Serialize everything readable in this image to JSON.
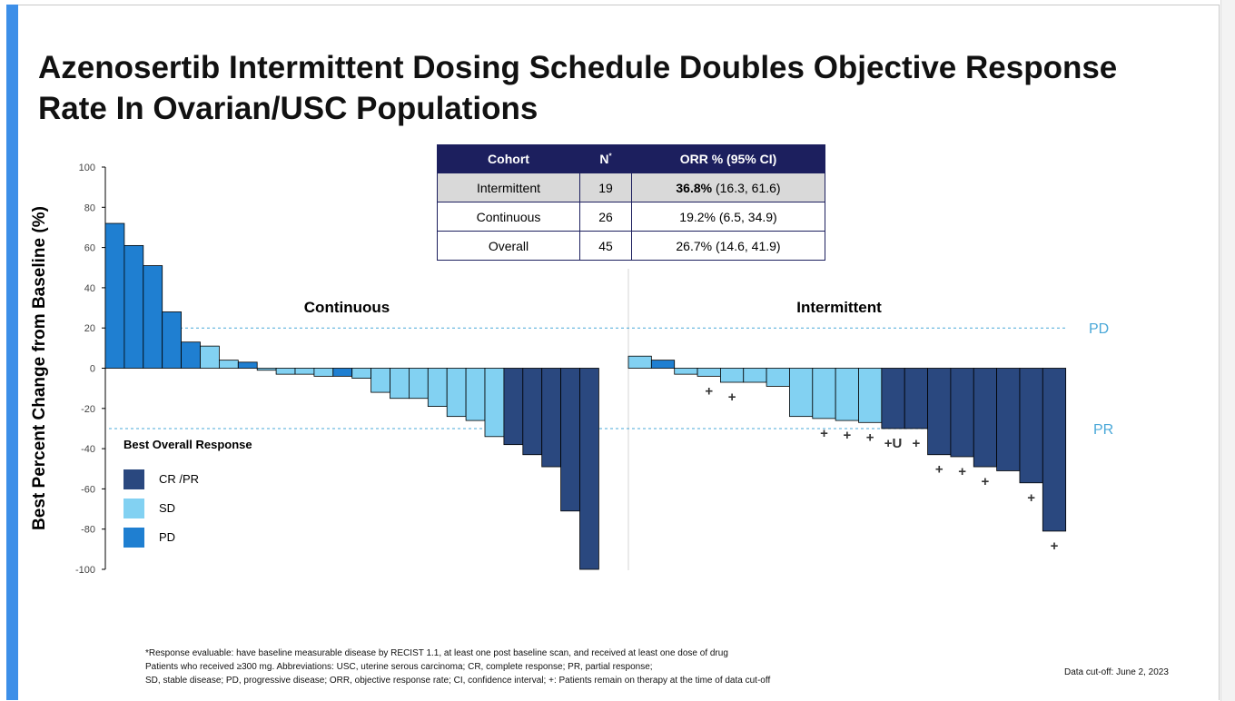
{
  "slide": {
    "title_line1": "Azenosertib Intermittent Dosing Schedule Doubles Objective Response",
    "title_line2": "Rate In Ovarian/USC Populations"
  },
  "table": {
    "headers": [
      "Cohort",
      "N*",
      "ORR % (95% CI)"
    ],
    "rows": [
      {
        "cohort": "Intermittent",
        "n": "19",
        "orr": "36.8%",
        "ci": "(16.3, 61.6)"
      },
      {
        "cohort": "Continuous",
        "n": "26",
        "orr": "19.2%",
        "ci": "(6.5, 34.9)"
      },
      {
        "cohort": "Overall",
        "n": "45",
        "orr": "26.7%",
        "ci": "(14.6, 41.9)"
      }
    ]
  },
  "chart_data": {
    "type": "bar",
    "ylabel": "Best Percent Change from Baseline (%)",
    "ylim": [
      -100,
      100
    ],
    "yticks": [
      "100",
      "80",
      "60",
      "40",
      "20",
      "0",
      "-20",
      "-40",
      "-60",
      "-80",
      "-100"
    ],
    "threshold_lines": [
      {
        "label": "PD",
        "value": 20
      },
      {
        "label": "PR",
        "value": -30
      }
    ],
    "legend": {
      "title": "Best Overall Response",
      "items": [
        {
          "key": "CR",
          "label": "CR /PR",
          "color": "#2a487f"
        },
        {
          "key": "SD",
          "label": "SD",
          "color": "#82d1f2"
        },
        {
          "key": "PD",
          "label": "PD",
          "color": "#1f7fd1"
        }
      ]
    },
    "series": [
      {
        "name": "Continuous",
        "values": [
          72,
          61,
          51,
          28,
          13,
          11,
          4,
          3,
          -1,
          -3,
          -3,
          -4,
          -4,
          -5,
          -12,
          -15,
          -15,
          -19,
          -24,
          -26,
          -34,
          -38,
          -43,
          -49,
          -71,
          -100
        ],
        "responses": [
          "PD",
          "PD",
          "PD",
          "PD",
          "PD",
          "SD",
          "SD",
          "PD",
          "SD",
          "SD",
          "SD",
          "SD",
          "PD",
          "SD",
          "SD",
          "SD",
          "SD",
          "SD",
          "SD",
          "SD",
          "SD",
          "CR",
          "CR",
          "CR",
          "CR",
          "CR"
        ],
        "annotations": [
          "",
          "",
          "",
          "",
          "",
          "",
          "",
          "",
          "",
          "",
          "",
          "",
          "",
          "",
          "",
          "",
          "",
          "",
          "",
          "",
          "",
          "",
          "",
          "",
          "",
          ""
        ]
      },
      {
        "name": "Intermittent",
        "values": [
          6,
          4,
          -3,
          -4,
          -7,
          -7,
          -9,
          -24,
          -25,
          -26,
          -27,
          -30,
          -30,
          -43,
          -44,
          -49,
          -51,
          -57,
          -81
        ],
        "responses": [
          "SD",
          "PD",
          "SD",
          "SD",
          "SD",
          "SD",
          "SD",
          "SD",
          "SD",
          "SD",
          "SD",
          "CR",
          "CR",
          "CR",
          "CR",
          "CR",
          "CR",
          "CR",
          "CR"
        ],
        "annotations": [
          "",
          "",
          "",
          "+",
          "+",
          "",
          "",
          "",
          "+",
          "+",
          "+",
          "+U",
          "+",
          "+",
          "+",
          "+",
          "",
          "+",
          "+"
        ]
      }
    ]
  },
  "footnotes": [
    "*Response evaluable: have baseline measurable disease by RECIST 1.1, at least one post baseline scan, and received at least one dose of drug",
    "Patients who received ≥300 mg. Abbreviations: USC, uterine serous carcinoma; CR, complete response; PR, partial response;",
    "SD, stable disease; PD, progressive disease; ORR, objective response rate; CI, confidence interval; +: Patients remain on therapy at the time of data cut-off"
  ],
  "data_cutoff": "Data cut-off: June 2, 2023"
}
